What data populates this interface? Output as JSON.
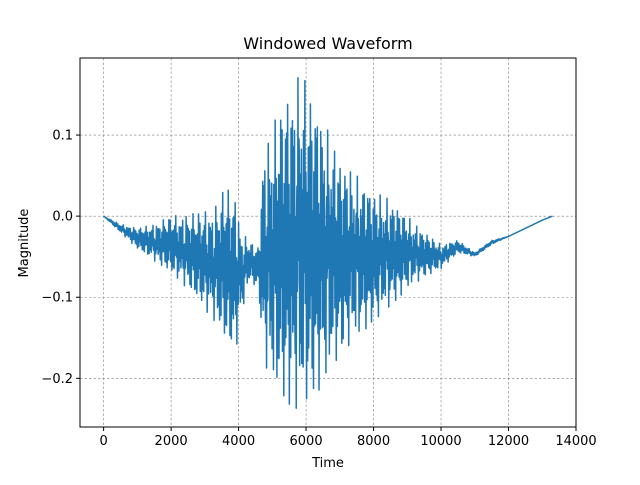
{
  "chart_data": {
    "type": "line",
    "title": "Windowed Waveform",
    "xlabel": "Time",
    "ylabel": "Magnitude",
    "xlim": [
      -700,
      14000
    ],
    "ylim": [
      -0.26,
      0.195
    ],
    "xticks": [
      0,
      2000,
      4000,
      6000,
      8000,
      10000,
      12000,
      14000
    ],
    "xtick_labels": [
      "0",
      "2000",
      "4000",
      "6000",
      "8000",
      "10000",
      "12000",
      "14000"
    ],
    "yticks": [
      -0.2,
      -0.1,
      0.0,
      0.1
    ],
    "ytick_labels": [
      "−0.2",
      "−0.1",
      "0.0",
      "0.1"
    ],
    "grid": true,
    "legend": "none",
    "series": [
      {
        "color": "#1f77b4",
        "x_range": [
          0,
          13300
        ],
        "envelope": {
          "x": [
            0,
            500,
            1000,
            1500,
            2000,
            2500,
            3000,
            3300,
            3600,
            3900,
            4100,
            4300,
            4600,
            4700,
            5000,
            5300,
            5600,
            5900,
            6000,
            6300,
            6600,
            7000,
            7500,
            8000,
            8500,
            9000,
            9500,
            10000,
            10500,
            11000,
            11500,
            12000,
            12500,
            13000,
            13300
          ],
          "upper": [
            0.0,
            -0.01,
            -0.015,
            -0.01,
            0.0,
            0.002,
            0.005,
            0.01,
            0.035,
            0.025,
            -0.02,
            -0.03,
            -0.04,
            0.07,
            0.11,
            0.14,
            0.16,
            0.18,
            0.16,
            0.14,
            0.11,
            0.07,
            0.05,
            0.03,
            0.02,
            0.0,
            -0.02,
            -0.035,
            -0.03,
            -0.045,
            -0.03,
            -0.025,
            -0.015,
            -0.005,
            0.0
          ],
          "lower": [
            0.0,
            -0.02,
            -0.04,
            -0.055,
            -0.07,
            -0.09,
            -0.115,
            -0.13,
            -0.155,
            -0.17,
            -0.12,
            -0.08,
            -0.09,
            -0.17,
            -0.21,
            -0.225,
            -0.235,
            -0.24,
            -0.23,
            -0.22,
            -0.2,
            -0.17,
            -0.15,
            -0.13,
            -0.11,
            -0.09,
            -0.075,
            -0.065,
            -0.045,
            -0.05,
            -0.035,
            -0.025,
            -0.015,
            -0.005,
            0.0
          ]
        }
      }
    ]
  }
}
